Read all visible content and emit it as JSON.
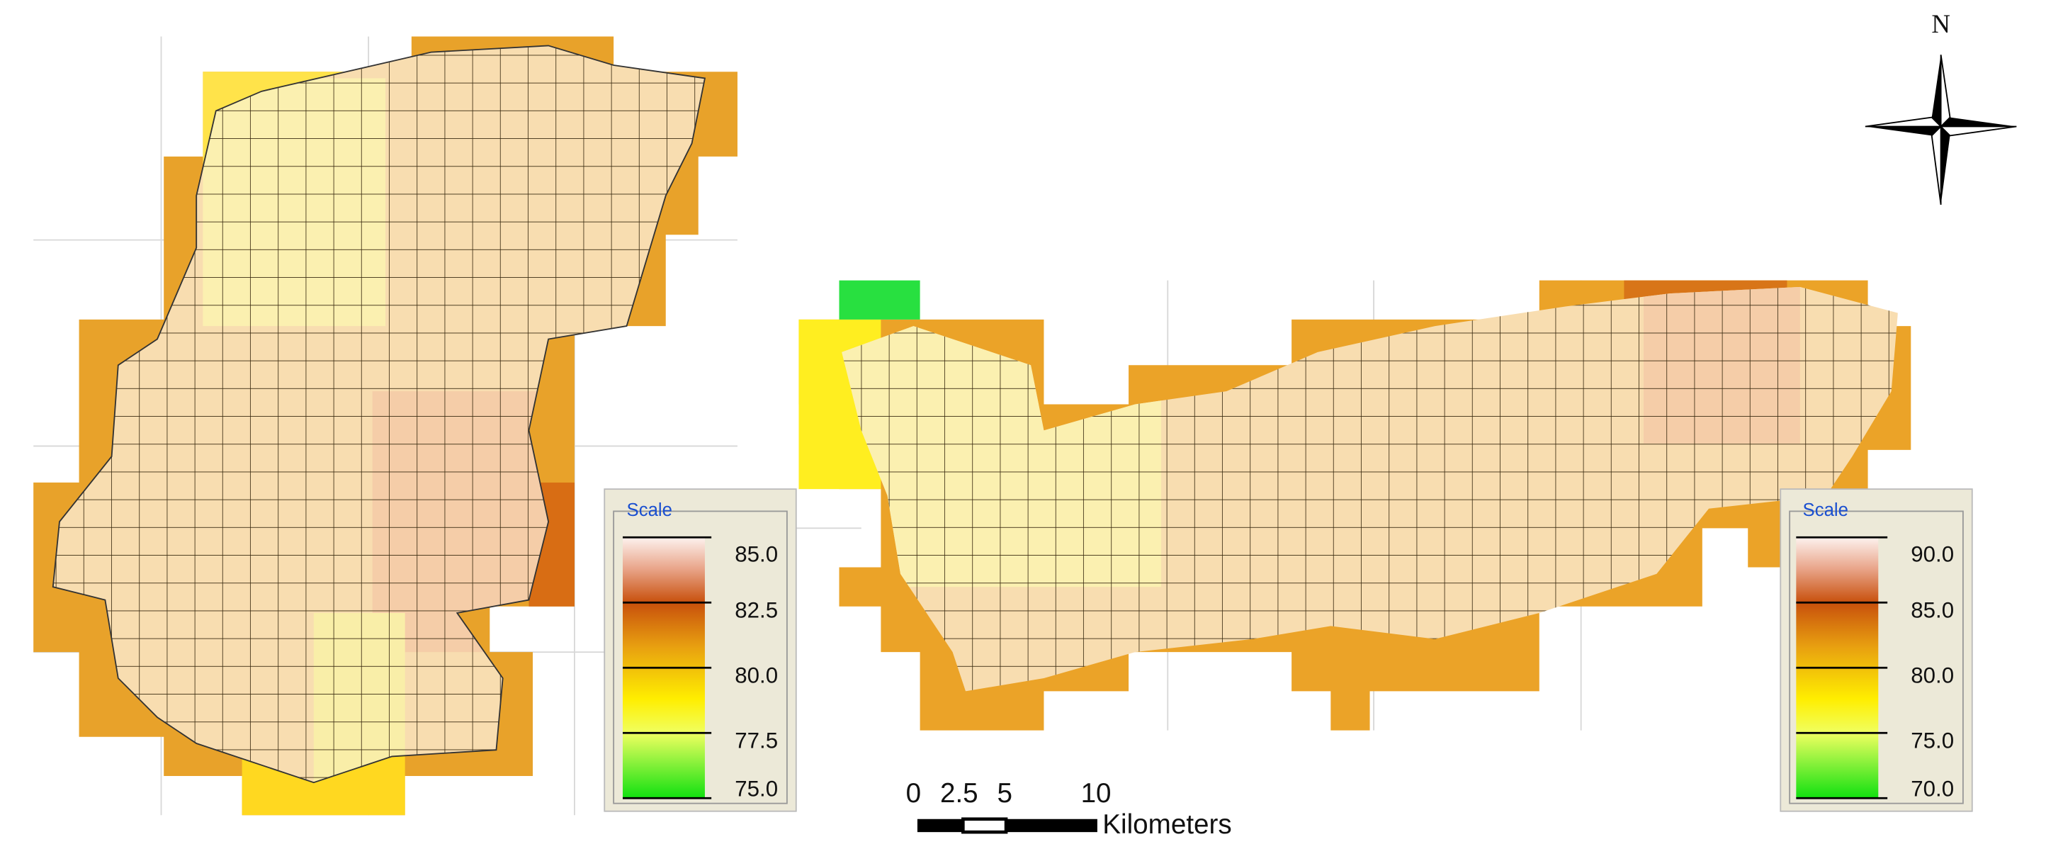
{
  "legends": [
    {
      "title": "Scale",
      "labels": [
        "85.0",
        "82.5",
        "80.0",
        "77.5",
        "75.0"
      ]
    },
    {
      "title": "Scale",
      "labels": [
        "90.0",
        "85.0",
        "80.0",
        "75.0",
        "70.0"
      ]
    }
  ],
  "scale_bar": {
    "labels": [
      "0",
      "2.5",
      "5",
      "10"
    ],
    "unit": "Kilometers"
  },
  "north_arrow": "N"
}
